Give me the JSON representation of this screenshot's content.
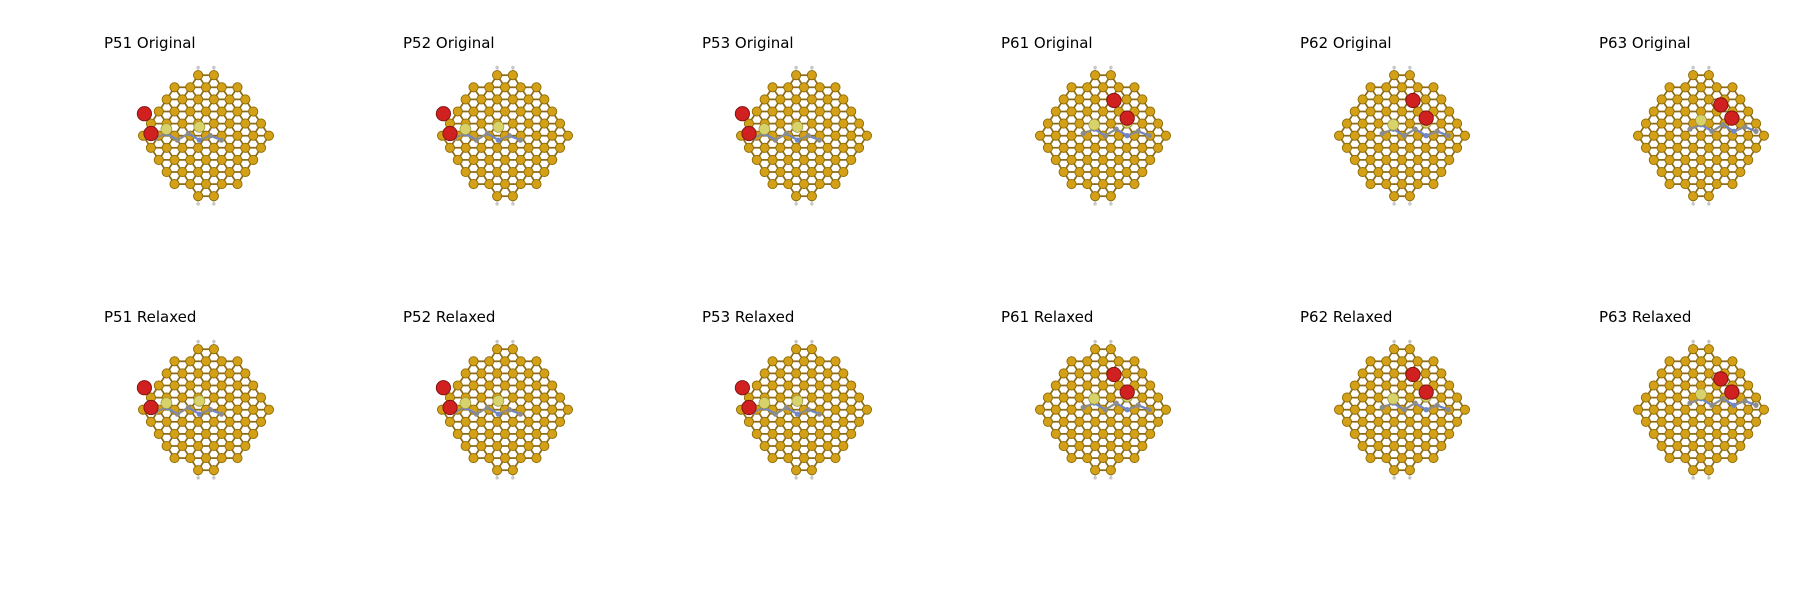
{
  "colors": {
    "background": "#ffffff",
    "substrate_atom": "#D4A017",
    "substrate_atom_edge": "#8A6A00",
    "substrate_bond": "#8C6A1A",
    "edge_hydrogen": "#C8C8C8",
    "molecule_carbon": "#8C8C8C",
    "molecule_nitrogen": "#6F86C8",
    "molecule_sulfur": "#D8D26A",
    "molecule_oxygen": "#D02020"
  },
  "rows": [
    {
      "label": "Original",
      "panels": [
        {
          "title": "P51 Original",
          "motif": "left-pair"
        },
        {
          "title": "P52 Original",
          "motif": "left-pair"
        },
        {
          "title": "P53 Original",
          "motif": "left-pair"
        },
        {
          "title": "P61 Original",
          "motif": "center-pair"
        },
        {
          "title": "P62 Original",
          "motif": "center-pair"
        },
        {
          "title": "P63 Original",
          "motif": "right-pair"
        }
      ]
    },
    {
      "label": "Relaxed",
      "panels": [
        {
          "title": "P51 Relaxed",
          "motif": "left-pair"
        },
        {
          "title": "P52 Relaxed",
          "motif": "left-pair"
        },
        {
          "title": "P53 Relaxed",
          "motif": "left-pair"
        },
        {
          "title": "P61 Relaxed",
          "motif": "center-pair"
        },
        {
          "title": "P62 Relaxed",
          "motif": "center-pair"
        },
        {
          "title": "P63 Relaxed",
          "motif": "right-pair"
        }
      ]
    }
  ]
}
